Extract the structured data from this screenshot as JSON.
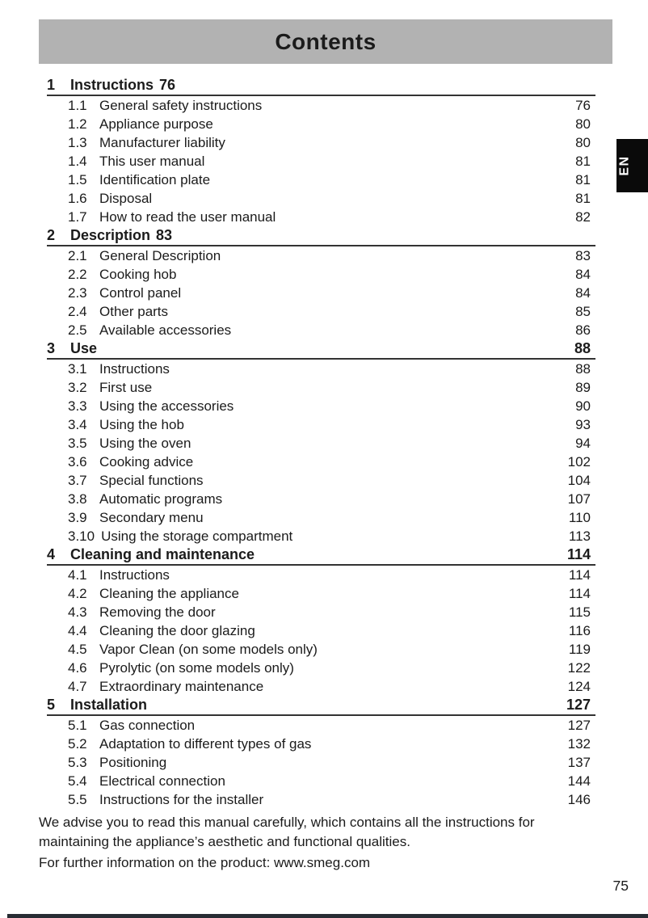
{
  "header": {
    "title": "Contents",
    "language_tab": "EN"
  },
  "toc": {
    "sections": [
      {
        "number": "1",
        "title": "Instructions",
        "inline_page": "76",
        "page": "",
        "items": [
          {
            "number": "1.1",
            "title": "General safety instructions",
            "page": "76"
          },
          {
            "number": "1.2",
            "title": "Appliance purpose",
            "page": "80"
          },
          {
            "number": "1.3",
            "title": "Manufacturer liability",
            "page": "80"
          },
          {
            "number": "1.4",
            "title": "This user manual",
            "page": "81"
          },
          {
            "number": "1.5",
            "title": "Identification plate",
            "page": "81"
          },
          {
            "number": "1.6",
            "title": "Disposal",
            "page": "81"
          },
          {
            "number": "1.7",
            "title": "How to read the user manual",
            "page": "82"
          }
        ]
      },
      {
        "number": "2",
        "title": "Description",
        "inline_page": "83",
        "page": "",
        "items": [
          {
            "number": "2.1",
            "title": "General Description",
            "page": "83"
          },
          {
            "number": "2.2",
            "title": "Cooking hob",
            "page": "84"
          },
          {
            "number": "2.3",
            "title": "Control panel",
            "page": "84"
          },
          {
            "number": "2.4",
            "title": "Other parts",
            "page": "85"
          },
          {
            "number": "2.5",
            "title": "Available accessories",
            "page": "86"
          }
        ]
      },
      {
        "number": "3",
        "title": "Use",
        "inline_page": "",
        "page": "88",
        "items": [
          {
            "number": "3.1",
            "title": "Instructions",
            "page": "88"
          },
          {
            "number": "3.2",
            "title": "First use",
            "page": "89"
          },
          {
            "number": "3.3",
            "title": "Using the accessories",
            "page": "90"
          },
          {
            "number": "3.4",
            "title": "Using the hob",
            "page": "93"
          },
          {
            "number": "3.5",
            "title": "Using the oven",
            "page": "94"
          },
          {
            "number": "3.6",
            "title": "Cooking advice",
            "page": "102"
          },
          {
            "number": "3.7",
            "title": "Special functions",
            "page": "104"
          },
          {
            "number": "3.8",
            "title": "Automatic programs",
            "page": "107"
          },
          {
            "number": "3.9",
            "title": "Secondary menu",
            "page": "110"
          },
          {
            "number": "3.10",
            "title": "Using the storage compartment",
            "page": "113"
          }
        ]
      },
      {
        "number": "4",
        "title": "Cleaning and maintenance",
        "inline_page": "",
        "page": "114",
        "items": [
          {
            "number": "4.1",
            "title": "Instructions",
            "page": "114"
          },
          {
            "number": "4.2",
            "title": "Cleaning the appliance",
            "page": "114"
          },
          {
            "number": "4.3",
            "title": "Removing the door",
            "page": "115"
          },
          {
            "number": "4.4",
            "title": "Cleaning the door glazing",
            "page": "116"
          },
          {
            "number": "4.5",
            "title": "Vapor Clean (on some models only)",
            "page": "119"
          },
          {
            "number": "4.6",
            "title": "Pyrolytic (on some models only)",
            "page": "122"
          },
          {
            "number": "4.7",
            "title": "Extraordinary maintenance",
            "page": "124"
          }
        ]
      },
      {
        "number": "5",
        "title": "Installation",
        "inline_page": "",
        "page": "127",
        "items": [
          {
            "number": "5.1",
            "title": "Gas connection",
            "page": "127"
          },
          {
            "number": "5.2",
            "title": "Adaptation to different types of gas",
            "page": "132"
          },
          {
            "number": "5.3",
            "title": "Positioning",
            "page": "137"
          },
          {
            "number": "5.4",
            "title": "Electrical connection",
            "page": "144"
          },
          {
            "number": "5.5",
            "title": "Instructions for the installer",
            "page": "146"
          }
        ]
      }
    ]
  },
  "footer": {
    "advice_lines": [
      "We advise you to read this manual carefully, which contains all the instructions for",
      "maintaining the appliance’s aesthetic and functional qualities."
    ],
    "info_line": "For further information on the product: www.smeg.com",
    "page_number": "75"
  },
  "colors": {
    "page_bg": "#ffffff",
    "header_bar_bg": "#b2b2b2",
    "tab_bg": "#0a0a0a",
    "tab_text": "#ffffff",
    "ink": "#1b1b1b",
    "rule": "#333333",
    "bottom_bar": "#272c33"
  }
}
